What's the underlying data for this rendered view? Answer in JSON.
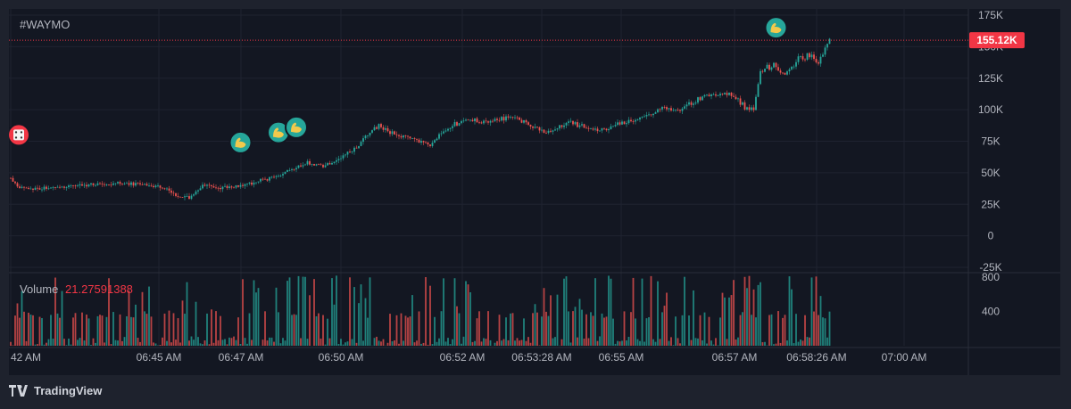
{
  "symbol": "#WAYMO",
  "price_label": "155.12K",
  "volume_label": "Volume",
  "volume_value": "21.27591388",
  "brand": "TradingView",
  "colors": {
    "up": "#26a69a",
    "down": "#ef5350",
    "price_badge": "#f23645",
    "grid": "#1f2330",
    "text": "#b2b5be"
  },
  "markers": [
    {
      "type": "dice-icon",
      "bg": "#f23645",
      "time_index": 0,
      "value": 80000
    },
    {
      "type": "flex-icon",
      "bg": "#26a69a",
      "time_index": 103,
      "value": 74000
    },
    {
      "type": "flex-icon",
      "bg": "#26a69a",
      "time_index": 120,
      "value": 82000
    },
    {
      "type": "flex-icon",
      "bg": "#26a69a",
      "time_index": 128,
      "value": 86000
    },
    {
      "type": "flex-icon",
      "bg": "#26a69a",
      "time_index": 343,
      "value": 165000
    }
  ],
  "chart_data": {
    "type": "candlestick",
    "price_axis": {
      "ticks": [
        "175K",
        "150K",
        "125K",
        "100K",
        "75K",
        "50K",
        "25K",
        "0",
        "-25K"
      ],
      "range": [
        -25000,
        175000
      ],
      "current_price": 155120
    },
    "volume_axis": {
      "ticks": [
        "800",
        "400"
      ],
      "range": [
        0,
        800
      ]
    },
    "time_axis": {
      "ticks": [
        "42 AM",
        "06:45 AM",
        "06:47 AM",
        "06:50 AM",
        "06:52 AM",
        "06:53:28 AM",
        "06:55 AM",
        "06:57 AM",
        "06:58:26 AM",
        "07:00 AM"
      ]
    },
    "price_path": [
      [
        0,
        46000
      ],
      [
        3,
        39000
      ],
      [
        10,
        37000
      ],
      [
        30,
        40000
      ],
      [
        50,
        42000
      ],
      [
        60,
        40000
      ],
      [
        70,
        38000
      ],
      [
        75,
        31000
      ],
      [
        80,
        30000
      ],
      [
        82,
        33000
      ],
      [
        86,
        40000
      ],
      [
        95,
        38000
      ],
      [
        105,
        40000
      ],
      [
        112,
        44000
      ],
      [
        118,
        46000
      ],
      [
        125,
        52000
      ],
      [
        133,
        58000
      ],
      [
        140,
        55000
      ],
      [
        148,
        62000
      ],
      [
        155,
        70000
      ],
      [
        160,
        80000
      ],
      [
        165,
        88000
      ],
      [
        170,
        82000
      ],
      [
        180,
        76000
      ],
      [
        188,
        72000
      ],
      [
        192,
        80000
      ],
      [
        198,
        88000
      ],
      [
        205,
        92000
      ],
      [
        215,
        90000
      ],
      [
        225,
        95000
      ],
      [
        232,
        88000
      ],
      [
        240,
        82000
      ],
      [
        250,
        90000
      ],
      [
        258,
        86000
      ],
      [
        265,
        84000
      ],
      [
        275,
        90000
      ],
      [
        285,
        96000
      ],
      [
        293,
        102000
      ],
      [
        300,
        100000
      ],
      [
        308,
        108000
      ],
      [
        315,
        112000
      ],
      [
        320,
        114000
      ],
      [
        326,
        108000
      ],
      [
        330,
        100000
      ],
      [
        333,
        100000
      ],
      [
        336,
        130000
      ],
      [
        342,
        136000
      ],
      [
        348,
        128000
      ],
      [
        353,
        140000
      ],
      [
        358,
        144000
      ],
      [
        362,
        138000
      ],
      [
        365,
        150000
      ],
      [
        367,
        155000
      ]
    ],
    "n_bars": 368
  }
}
